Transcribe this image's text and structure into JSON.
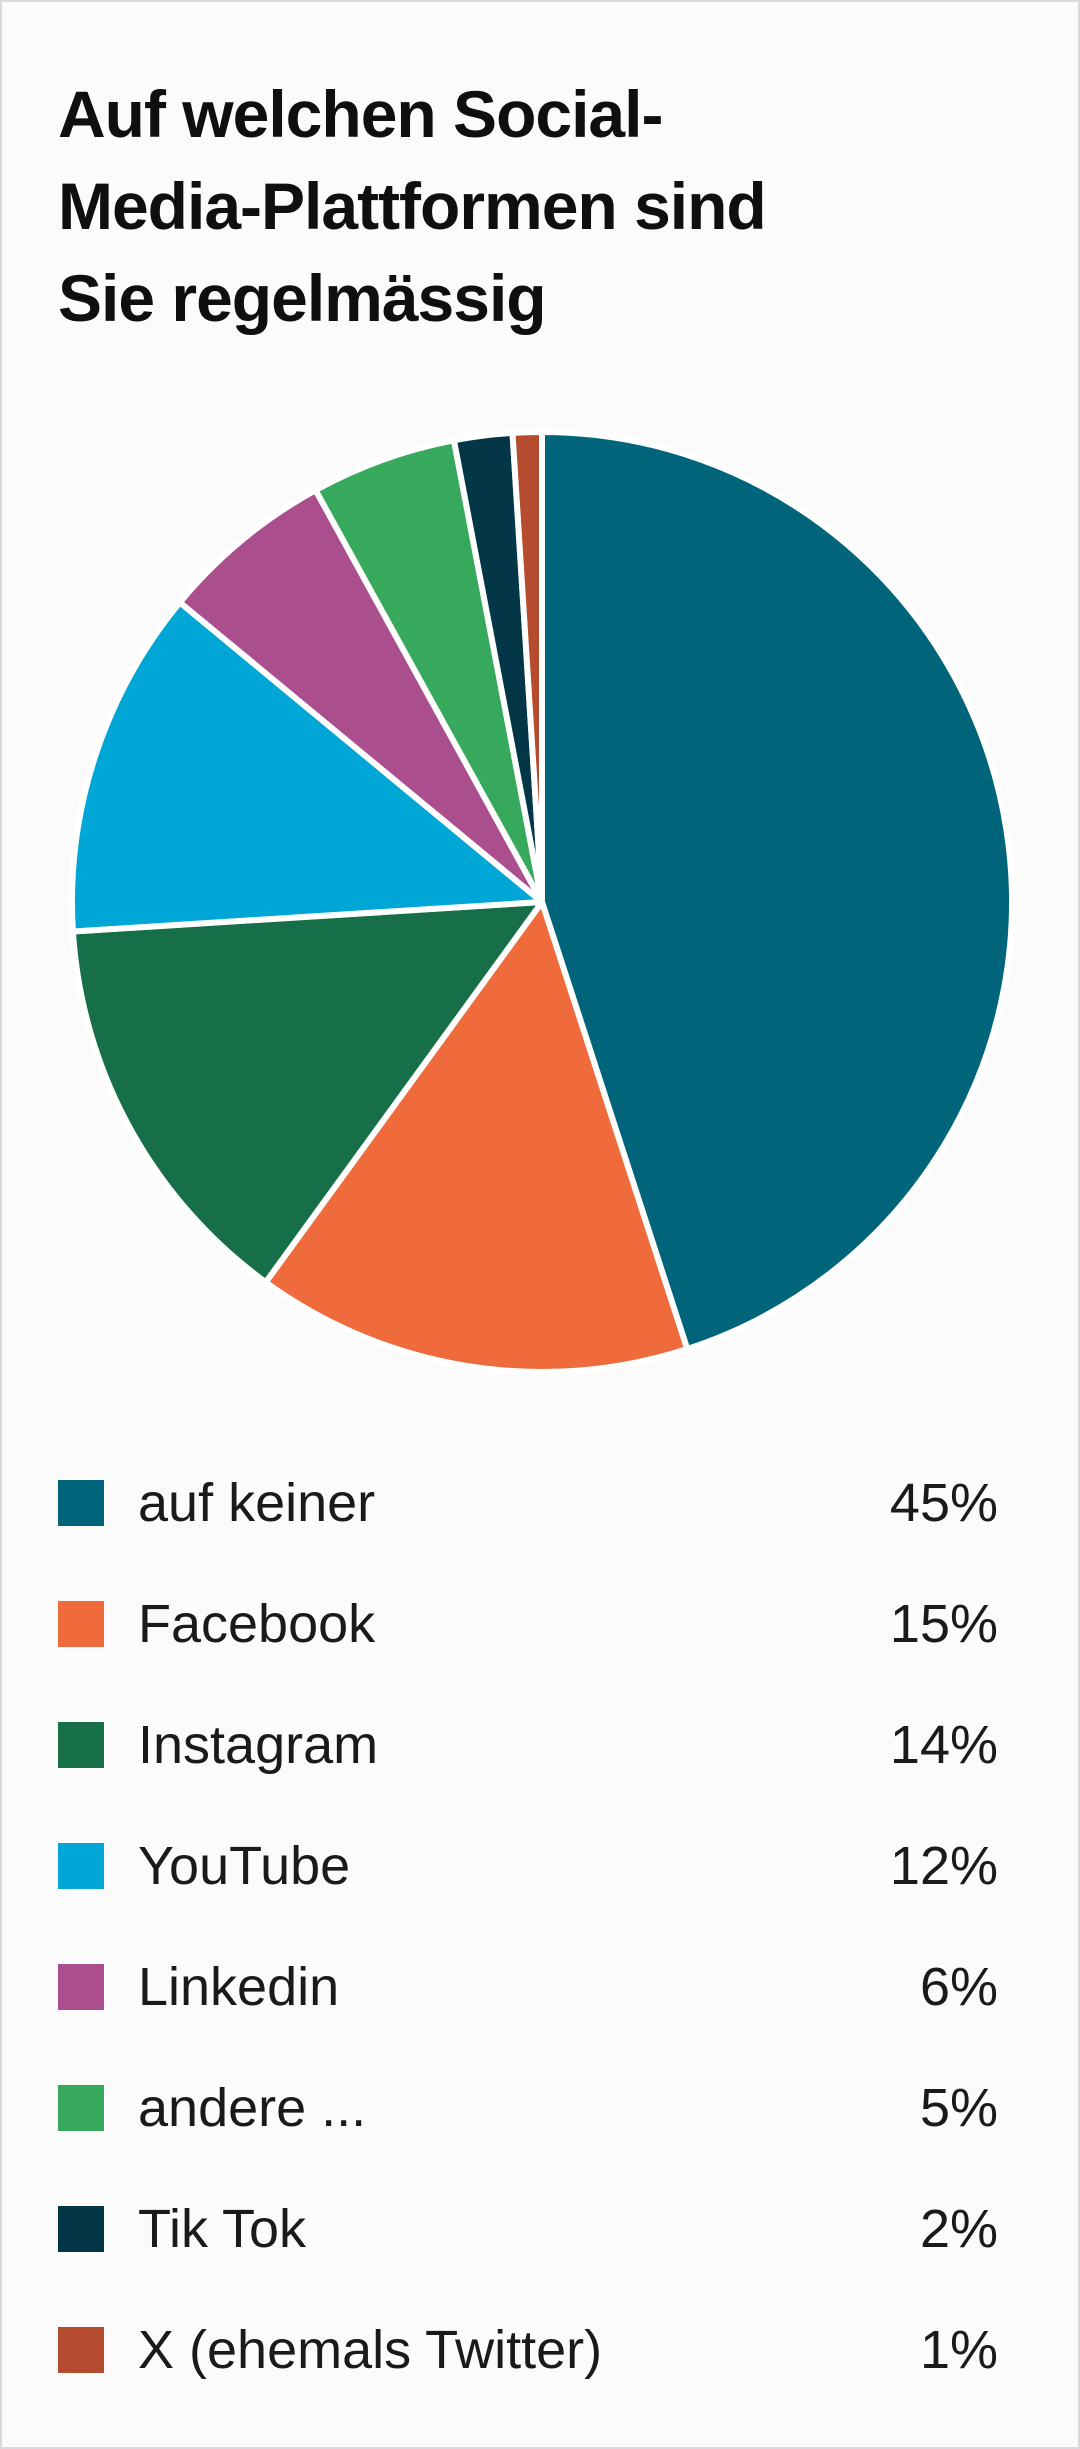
{
  "title_lines": [
    "Auf welchen Social-",
    "Media-Plattformen sind",
    "Sie regelmässig"
  ],
  "chart_data": {
    "type": "pie",
    "title": "Auf welchen Social-Media-Plattformen sind Sie regelmässig",
    "start_angle_deg": 0,
    "direction": "clockwise",
    "legend_position": "bottom",
    "slices": [
      {
        "label": "auf keiner",
        "value": 45,
        "value_label": "45%",
        "color": "#00657a"
      },
      {
        "label": "Facebook",
        "value": 15,
        "value_label": "15%",
        "color": "#f06b3c"
      },
      {
        "label": "Instagram",
        "value": 14,
        "value_label": "14%",
        "color": "#166f48"
      },
      {
        "label": "YouTube",
        "value": 12,
        "value_label": "12%",
        "color": "#00a6d6"
      },
      {
        "label": "Linkedin",
        "value": 6,
        "value_label": "6%",
        "color": "#ab4e8e"
      },
      {
        "label": "andere ...",
        "value": 5,
        "value_label": "5%",
        "color": "#36a95c"
      },
      {
        "label": "Tik Tok",
        "value": 2,
        "value_label": "2%",
        "color": "#033647"
      },
      {
        "label": "X (ehemals Twitter)",
        "value": 1,
        "value_label": "1%",
        "color": "#b64c2f"
      }
    ]
  }
}
